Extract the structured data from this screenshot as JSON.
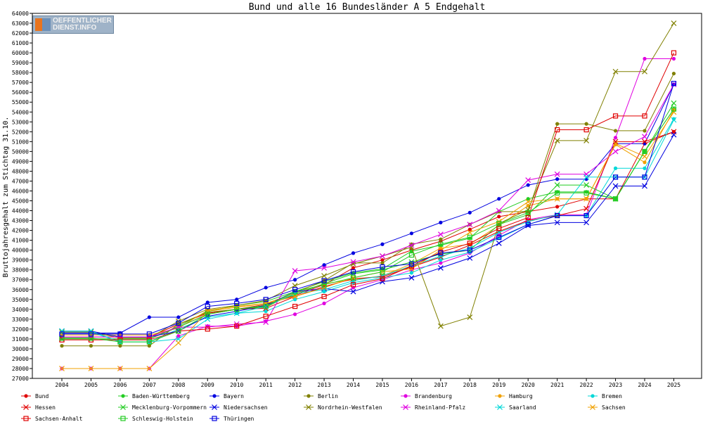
{
  "chart_data": {
    "type": "line",
    "title": "Bund und alle 16 Bundesländer A 5 Endgehalt",
    "ylabel": "Bruttojahresgehalt zum Stichtag 31.10.",
    "xlabel": "",
    "ylim": [
      27000,
      64000
    ],
    "ytick_step": 1000,
    "categories": [
      "2004",
      "2005",
      "2006",
      "2007",
      "2008",
      "2009",
      "2010",
      "2011",
      "2012",
      "2013",
      "2014",
      "2015",
      "2016",
      "2017",
      "2018",
      "2019",
      "2020",
      "2021",
      "2022",
      "2023",
      "2024",
      "2025"
    ],
    "grid": false,
    "legend_position": "bottom",
    "series": [
      {
        "name": "Bund",
        "color": "#e00000",
        "marker": "dot",
        "values": [
          31200,
          31200,
          31200,
          31200,
          32500,
          33600,
          34000,
          34500,
          35400,
          36500,
          38200,
          39000,
          40000,
          40900,
          42100,
          43400,
          43900,
          44400,
          45200,
          45200,
          50800,
          52000
        ]
      },
      {
        "name": "Baden-Württemberg",
        "color": "#22cc22",
        "marker": "dot",
        "values": [
          31000,
          31000,
          31000,
          31000,
          32300,
          33800,
          34400,
          34800,
          35800,
          36800,
          37700,
          38100,
          39900,
          40500,
          41200,
          43900,
          45200,
          45900,
          45900,
          45200,
          50000,
          54300
        ]
      },
      {
        "name": "Bayern",
        "color": "#0000e0",
        "marker": "dot",
        "values": [
          31600,
          31600,
          31600,
          33200,
          33200,
          34700,
          35000,
          36200,
          37000,
          38500,
          39700,
          40600,
          41700,
          42800,
          43800,
          45200,
          46600,
          47200,
          47200,
          50800,
          50800,
          56800
        ]
      },
      {
        "name": "Berlin",
        "color": "#808000",
        "marker": "dot",
        "values": [
          30300,
          30300,
          30300,
          30300,
          32500,
          33700,
          34000,
          34200,
          35700,
          36900,
          38700,
          38700,
          40600,
          41100,
          42600,
          43900,
          43900,
          52800,
          52800,
          52100,
          52100,
          57900
        ]
      },
      {
        "name": "Brandenburg",
        "color": "#e000e0",
        "marker": "dot",
        "values": [
          28000,
          28000,
          28000,
          28000,
          31300,
          32300,
          32300,
          32800,
          33500,
          34600,
          36200,
          37000,
          38000,
          38700,
          39700,
          41500,
          43100,
          43600,
          43600,
          51400,
          59400,
          59400
        ]
      },
      {
        "name": "Hamburg",
        "color": "#f0a000",
        "marker": "dot",
        "values": [
          31400,
          31400,
          31400,
          31400,
          32100,
          33900,
          34300,
          34600,
          35600,
          36600,
          37000,
          37400,
          38600,
          40200,
          40600,
          42500,
          44500,
          45200,
          45200,
          50700,
          48900,
          54200
        ]
      },
      {
        "name": "Bremen",
        "color": "#00d8d8",
        "marker": "dot",
        "values": [
          31700,
          31700,
          30700,
          30700,
          32000,
          33200,
          33600,
          33800,
          35000,
          35800,
          36700,
          37200,
          37700,
          39000,
          39800,
          41200,
          42600,
          43500,
          43500,
          48300,
          48300,
          53300
        ]
      },
      {
        "name": "Hessen",
        "color": "#e00000",
        "marker": "x",
        "values": [
          31000,
          31000,
          31000,
          31000,
          32200,
          33500,
          34000,
          34100,
          35300,
          36300,
          37100,
          37300,
          38300,
          39300,
          40500,
          41900,
          43000,
          43500,
          44200,
          51000,
          51000,
          52000
        ]
      },
      {
        "name": "Mecklenburg-Vorpommern",
        "color": "#22cc22",
        "marker": "x",
        "values": [
          31000,
          31000,
          31000,
          31000,
          32200,
          33500,
          34000,
          34400,
          35500,
          36600,
          37600,
          38000,
          38800,
          39600,
          40000,
          42600,
          43600,
          46600,
          46600,
          45200,
          50000,
          54900
        ]
      },
      {
        "name": "Niedersachsen",
        "color": "#0000e0",
        "marker": "x",
        "values": [
          31800,
          31800,
          31200,
          31200,
          31800,
          33300,
          33800,
          34400,
          35800,
          36100,
          35800,
          36800,
          37200,
          38200,
          39200,
          40700,
          42500,
          42800,
          42800,
          46500,
          46500,
          51700
        ]
      },
      {
        "name": "Nordrhein-Westfalen",
        "color": "#808000",
        "marker": "x",
        "values": [
          31700,
          31700,
          31100,
          31100,
          32800,
          34000,
          34400,
          34900,
          36400,
          37400,
          38600,
          39400,
          40300,
          32300,
          33200,
          42700,
          44100,
          51100,
          51100,
          58100,
          58100,
          63000
        ]
      },
      {
        "name": "Rheinland-Pfalz",
        "color": "#e000e0",
        "marker": "x",
        "values": [
          31200,
          31200,
          31200,
          31200,
          32200,
          32200,
          32500,
          32700,
          37900,
          38200,
          38800,
          39400,
          40500,
          41600,
          42600,
          44000,
          47100,
          47700,
          47700,
          50000,
          51500,
          56800
        ]
      },
      {
        "name": "Saarland",
        "color": "#00d8d8",
        "marker": "x",
        "values": [
          31800,
          31800,
          30700,
          30700,
          31000,
          33000,
          33600,
          34300,
          35600,
          36000,
          36900,
          37400,
          38400,
          39400,
          40200,
          41800,
          42900,
          43600,
          47400,
          47400,
          47400,
          53200
        ]
      },
      {
        "name": "Sachsen",
        "color": "#f0a000",
        "marker": "x",
        "values": [
          28000,
          28000,
          28000,
          28000,
          30600,
          33800,
          34200,
          34600,
          35300,
          36200,
          37200,
          37800,
          38100,
          40000,
          41800,
          42900,
          44900,
          45200,
          45200,
          50800,
          49500,
          54000
        ]
      },
      {
        "name": "Sachsen-Anhalt",
        "color": "#e00000",
        "marker": "square",
        "values": [
          30900,
          30900,
          30900,
          30900,
          31800,
          32000,
          32300,
          33300,
          34300,
          35300,
          36500,
          37100,
          38400,
          39800,
          40700,
          42200,
          43300,
          52200,
          52200,
          53600,
          53600,
          60000
        ]
      },
      {
        "name": "Schleswig-Holstein",
        "color": "#22cc22",
        "marker": "square",
        "values": [
          31100,
          31100,
          30700,
          30700,
          31800,
          33500,
          34000,
          34300,
          35800,
          36500,
          37200,
          37800,
          39500,
          40600,
          41300,
          42700,
          43800,
          45800,
          45800,
          45200,
          50000,
          54300
        ]
      },
      {
        "name": "Thüringen",
        "color": "#0000e0",
        "marker": "square",
        "values": [
          31500,
          31500,
          31500,
          31500,
          32600,
          34300,
          34600,
          35000,
          36000,
          36900,
          37800,
          38300,
          38600,
          39700,
          40000,
          41300,
          42600,
          43500,
          43500,
          47400,
          47400,
          56900
        ]
      }
    ]
  },
  "logo": {
    "line1": "OEFFENTLICHER",
    "line2": "DIENST.INFO"
  }
}
